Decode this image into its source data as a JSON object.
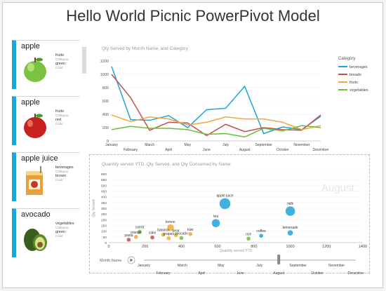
{
  "title": "Hello World Picnic PowerPivot Model",
  "tiles": [
    {
      "name": "apple",
      "category": "fruits",
      "category_cap": "Category",
      "color": "green",
      "color_cap": "Color",
      "image": "green-apple"
    },
    {
      "name": "apple",
      "category": "fruits",
      "category_cap": "Category",
      "color": "red",
      "color_cap": "Color",
      "image": "red-apple"
    },
    {
      "name": "apple juice",
      "category": "beverages",
      "category_cap": "Category",
      "color": "brown",
      "color_cap": "Color",
      "image": "juice-box"
    },
    {
      "name": "avocado",
      "category": "vegetables",
      "category_cap": "Category",
      "color": "green",
      "color_cap": "Color",
      "image": "avocado"
    }
  ],
  "colors": {
    "accent": "#19a7e0",
    "beverages": "#1ea2dc",
    "breads": "#c0504d",
    "fruits": "#f0a93a",
    "vegetables": "#6cbf3b"
  },
  "line_chart_title": "Qty Served by Month Name, and Category",
  "scatter_chart_title": "Quantity served YTD, Qty Served, and Qty Consumed by Name",
  "watermark": "August",
  "month_slider": {
    "label": "Month Name",
    "value": "August"
  },
  "chart_data": [
    {
      "type": "line",
      "title": "Qty Served by Month Name, and Category",
      "categories": [
        "January",
        "February",
        "March",
        "April",
        "May",
        "June",
        "July",
        "August",
        "September",
        "October",
        "November",
        "December"
      ],
      "legend_title": "Category",
      "legend_position": "right",
      "ylim": [
        0,
        1200
      ],
      "yticks": [
        0,
        200,
        400,
        600,
        800,
        1000,
        1200
      ],
      "series": [
        {
          "name": "beverages",
          "values": [
            1120,
            320,
            310,
            380,
            200,
            470,
            490,
            820,
            110,
            210,
            170,
            370
          ]
        },
        {
          "name": "breads",
          "values": [
            1000,
            650,
            160,
            280,
            270,
            80,
            250,
            140,
            200,
            170,
            160,
            390
          ]
        },
        {
          "name": "fruits",
          "values": [
            390,
            290,
            360,
            330,
            240,
            280,
            360,
            330,
            330,
            280,
            170,
            230
          ]
        },
        {
          "name": "vegetables",
          "values": [
            170,
            220,
            190,
            190,
            170,
            100,
            110,
            60,
            190,
            150,
            230,
            200
          ]
        }
      ]
    },
    {
      "type": "scatter",
      "title": "Quantity served YTD, Qty Served, and Qty Consumed by Name",
      "xlabel": "Quantity served YTD",
      "ylabel": "Qty Served",
      "xlim": [
        0,
        1400
      ],
      "ylim": [
        0,
        600
      ],
      "xticks": [
        0,
        200,
        400,
        600,
        800,
        1000,
        1200,
        1400
      ],
      "yticks": [
        0,
        50,
        100,
        150,
        200,
        250,
        300,
        350,
        400,
        450,
        500,
        550,
        600
      ],
      "points": [
        {
          "name": "apple juice",
          "x": 640,
          "y": 340,
          "size": 8,
          "category": "beverages"
        },
        {
          "name": "milk",
          "x": 1000,
          "y": 275,
          "size": 7,
          "category": "beverages"
        },
        {
          "name": "tea",
          "x": 590,
          "y": 170,
          "size": 6,
          "category": "beverages"
        },
        {
          "name": "lemon",
          "x": 340,
          "y": 130,
          "size": 5,
          "category": "fruits"
        },
        {
          "name": "lemonade",
          "x": 1000,
          "y": 85,
          "size": 4,
          "category": "beverages"
        },
        {
          "name": "carrot",
          "x": 170,
          "y": 95,
          "size": 3,
          "category": "vegetables"
        },
        {
          "name": "banana",
          "x": 300,
          "y": 70,
          "size": 3,
          "category": "fruits"
        },
        {
          "name": "pear",
          "x": 370,
          "y": 65,
          "size": 3,
          "category": "fruits"
        },
        {
          "name": "kiwi",
          "x": 450,
          "y": 75,
          "size": 3,
          "category": "fruits"
        },
        {
          "name": "orange",
          "x": 150,
          "y": 50,
          "size": 3,
          "category": "fruits"
        },
        {
          "name": "coffee",
          "x": 840,
          "y": 60,
          "size": 3,
          "category": "beverages"
        },
        {
          "name": "rice",
          "x": 770,
          "y": 35,
          "size": 3,
          "category": "vegetables"
        },
        {
          "name": "pasta",
          "x": 110,
          "y": 25,
          "size": 3,
          "category": "breads"
        },
        {
          "name": "cake",
          "x": 240,
          "y": 45,
          "size": 3,
          "category": "breads"
        },
        {
          "name": "avocado",
          "x": 400,
          "y": 40,
          "size": 3,
          "category": "vegetables"
        },
        {
          "name": "grapes",
          "x": 330,
          "y": 38,
          "size": 3,
          "category": "fruits"
        }
      ]
    }
  ],
  "slider_months_top": [
    "January",
    "March",
    "May",
    "July",
    "September",
    "November"
  ],
  "slider_months_bottom": [
    "February",
    "April",
    "June",
    "August",
    "October",
    "December"
  ]
}
